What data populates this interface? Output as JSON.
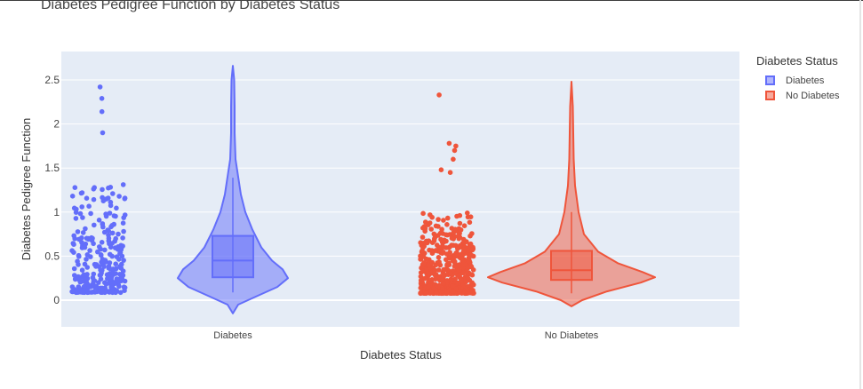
{
  "chart_data": {
    "type": "violin",
    "title": "Diabetes Pedigree Function by Diabetes Status",
    "xlabel": "Diabetes Status",
    "ylabel": "Diabetes Pedigree Function",
    "categories": [
      "Diabetes",
      "No Diabetes"
    ],
    "yticks": [
      "0",
      "0.5",
      "1",
      "1.5",
      "2",
      "2.5"
    ],
    "ylim": [
      -0.3,
      2.8
    ],
    "grid": true,
    "legend_title": "Diabetes Status",
    "legend_position": "right",
    "series": [
      {
        "name": "Diabetes",
        "color": "#636efa",
        "min": 0.088,
        "q1": 0.26,
        "median": 0.45,
        "q3": 0.73,
        "upper_fence": 1.39,
        "kde_min": -0.15,
        "kde_max": 2.66,
        "outliers": [
          1.9,
          2.14,
          2.29,
          2.42
        ]
      },
      {
        "name": "No Diabetes",
        "color": "#ef553b",
        "min": 0.078,
        "q1": 0.23,
        "median": 0.34,
        "q3": 0.56,
        "upper_fence": 1.0,
        "kde_min": -0.07,
        "kde_max": 2.48,
        "outliers": [
          1.45,
          1.48,
          1.6,
          1.7,
          1.75,
          1.78,
          2.33
        ]
      }
    ]
  }
}
